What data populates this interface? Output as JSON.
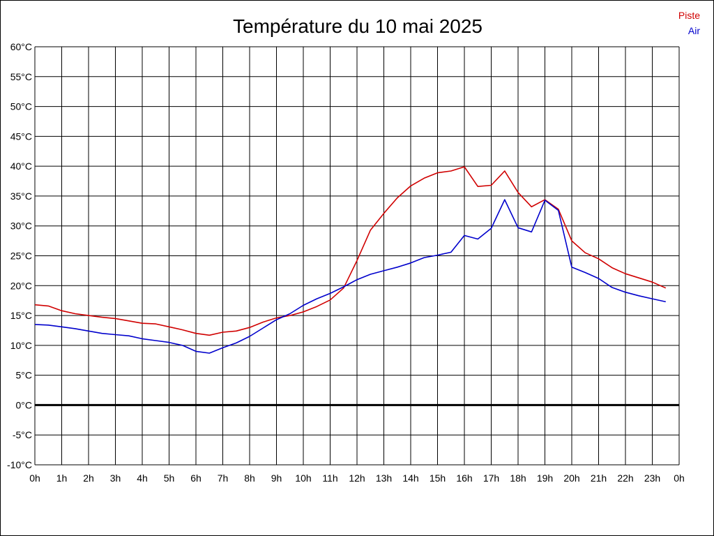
{
  "chart_data": {
    "type": "line",
    "title": "Température du 10 mai 2025",
    "xlabel": "",
    "ylabel": "",
    "x_ticks": [
      "0h",
      "1h",
      "2h",
      "3h",
      "4h",
      "5h",
      "6h",
      "7h",
      "8h",
      "9h",
      "10h",
      "11h",
      "12h",
      "13h",
      "14h",
      "15h",
      "16h",
      "17h",
      "18h",
      "19h",
      "20h",
      "21h",
      "22h",
      "23h",
      "0h"
    ],
    "y_ticks": [
      "60°C",
      "55°C",
      "50°C",
      "45°C",
      "40°C",
      "35°C",
      "30°C",
      "25°C",
      "20°C",
      "15°C",
      "10°C",
      "5°C",
      "0°C",
      "-5°C",
      "-10°C"
    ],
    "xlim": [
      0,
      24
    ],
    "ylim": [
      -10,
      60
    ],
    "grid": true,
    "legend_position": "top-right",
    "series": [
      {
        "name": "Piste",
        "color": "#d00000",
        "x": [
          0,
          0.5,
          1,
          1.5,
          2,
          2.5,
          3,
          3.5,
          4,
          4.5,
          5,
          5.5,
          6,
          6.5,
          7,
          7.5,
          8,
          8.5,
          9,
          9.5,
          10,
          10.5,
          11,
          11.5,
          12,
          12.5,
          13,
          13.5,
          14,
          14.5,
          15,
          15.5,
          16,
          16.5,
          17,
          17.5,
          18,
          18.5,
          19,
          19.5,
          20,
          20.5,
          21,
          21.5,
          22,
          22.5,
          23,
          23.5
        ],
        "values": [
          16.8,
          16.6,
          15.8,
          15.3,
          15.0,
          14.7,
          14.5,
          14.1,
          13.7,
          13.6,
          13.1,
          12.6,
          12.0,
          11.7,
          12.2,
          12.4,
          13.0,
          13.9,
          14.6,
          15.0,
          15.6,
          16.5,
          17.6,
          19.6,
          24.2,
          29.3,
          32.1,
          34.7,
          36.7,
          38.0,
          38.9,
          39.2,
          39.9,
          36.6,
          36.8,
          39.2,
          35.6,
          33.2,
          34.4,
          32.8,
          27.5,
          25.5,
          24.5,
          23.0,
          22.0,
          21.3,
          20.6,
          19.6
        ]
      },
      {
        "name": "Air",
        "color": "#0000cc",
        "x": [
          0,
          0.5,
          1,
          1.5,
          2,
          2.5,
          3,
          3.5,
          4,
          4.5,
          5,
          5.5,
          6,
          6.5,
          7,
          7.5,
          8,
          8.5,
          9,
          9.5,
          10,
          10.5,
          11,
          11.5,
          12,
          12.5,
          13,
          13.5,
          14,
          14.5,
          15,
          15.5,
          16,
          16.5,
          17,
          17.5,
          18,
          18.5,
          19,
          19.5,
          20,
          20.5,
          21,
          21.5,
          22,
          22.5,
          23,
          23.5
        ],
        "values": [
          13.5,
          13.4,
          13.1,
          12.8,
          12.4,
          12.0,
          11.8,
          11.6,
          11.1,
          10.8,
          10.5,
          10.0,
          9.0,
          8.7,
          9.6,
          10.4,
          11.5,
          12.9,
          14.3,
          15.3,
          16.7,
          17.8,
          18.7,
          19.8,
          21.0,
          21.9,
          22.5,
          23.1,
          23.8,
          24.7,
          25.1,
          25.6,
          28.4,
          27.8,
          29.6,
          34.4,
          29.7,
          29.0,
          34.3,
          32.6,
          23.1,
          22.2,
          21.2,
          19.7,
          18.9,
          18.3,
          17.8,
          17.3
        ]
      }
    ]
  }
}
